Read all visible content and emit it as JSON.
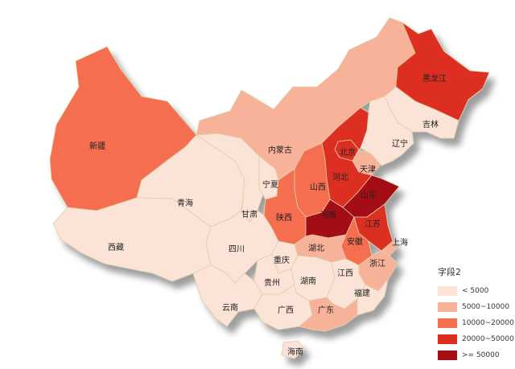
{
  "legend": {
    "title": "字段2",
    "items": [
      {
        "label": "< 5000",
        "color": "#fbe3d8"
      },
      {
        "label": "5000~10000",
        "color": "#f8b299"
      },
      {
        "label": "10000~20000",
        "color": "#f46e50"
      },
      {
        "label": "20000~50000",
        "color": "#dd2e21"
      },
      {
        "label": ">= 50000",
        "color": "#a50f15"
      }
    ]
  },
  "map": {
    "border_color": "#dccfa6",
    "provinces": [
      {
        "name": "新疆",
        "tier": 2
      },
      {
        "name": "西藏",
        "tier": 0
      },
      {
        "name": "青海",
        "tier": 0
      },
      {
        "name": "甘肃",
        "tier": 0
      },
      {
        "name": "内蒙古",
        "tier": 1
      },
      {
        "name": "黑龙江",
        "tier": 3
      },
      {
        "name": "吉林",
        "tier": 0
      },
      {
        "name": "辽宁",
        "tier": 0
      },
      {
        "name": "北京",
        "tier": 3
      },
      {
        "name": "天津",
        "tier": 1
      },
      {
        "name": "河北",
        "tier": 3
      },
      {
        "name": "山西",
        "tier": 2
      },
      {
        "name": "宁夏",
        "tier": 0
      },
      {
        "name": "陕西",
        "tier": 2
      },
      {
        "name": "山东",
        "tier": 4
      },
      {
        "name": "河南",
        "tier": 4
      },
      {
        "name": "江苏",
        "tier": 3
      },
      {
        "name": "安徽",
        "tier": 2
      },
      {
        "name": "上海",
        "tier": 1
      },
      {
        "name": "浙江",
        "tier": 1
      },
      {
        "name": "湖北",
        "tier": 1
      },
      {
        "name": "四川",
        "tier": 0
      },
      {
        "name": "重庆",
        "tier": 0
      },
      {
        "name": "贵州",
        "tier": 0
      },
      {
        "name": "湖南",
        "tier": 0
      },
      {
        "name": "江西",
        "tier": 0
      },
      {
        "name": "福建",
        "tier": 0
      },
      {
        "name": "云南",
        "tier": 0
      },
      {
        "name": "广西",
        "tier": 0
      },
      {
        "name": "广东",
        "tier": 1
      },
      {
        "name": "海南",
        "tier": 0
      }
    ]
  }
}
